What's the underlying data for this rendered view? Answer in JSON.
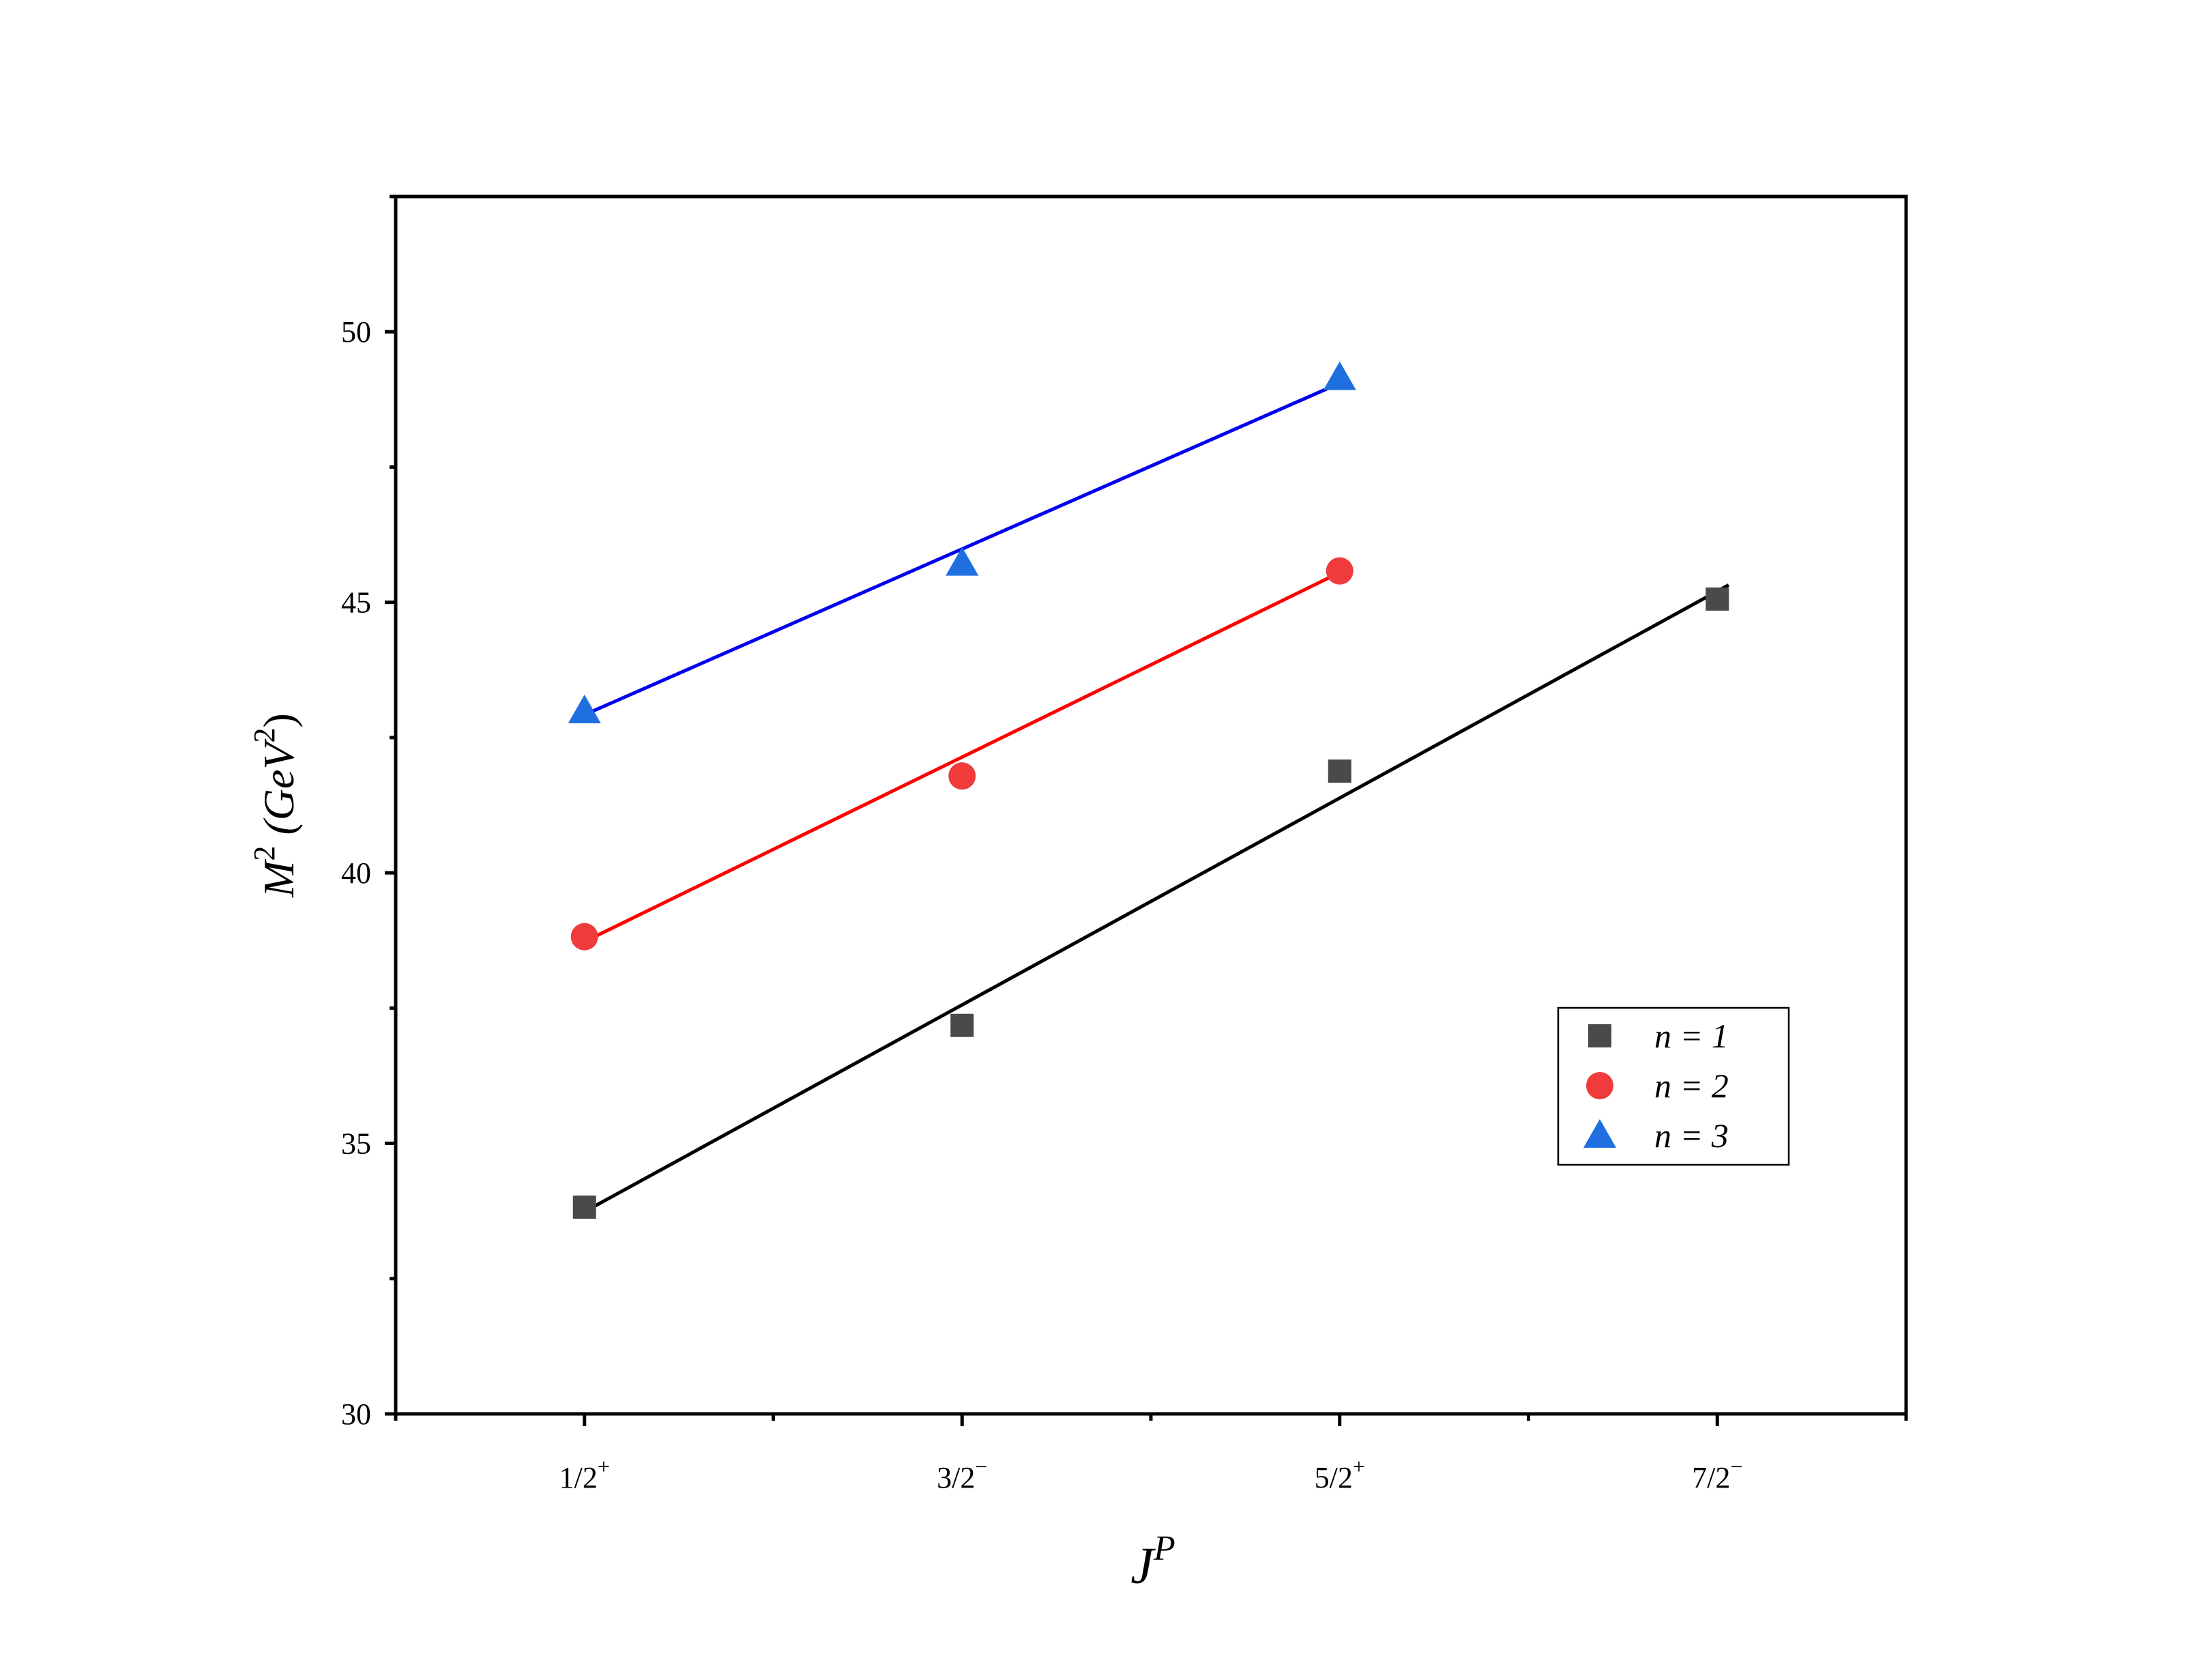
{
  "chart_data": {
    "type": "scatter",
    "title": "",
    "xlabel": "J",
    "xlabel_sup": "P",
    "ylabel": "M",
    "ylabel_sup": "2",
    "ylabel_unit": " (GeV",
    "ylabel_unit_sup": "2",
    "ylabel_close": ")",
    "categories": [
      {
        "num": "1/2",
        "sup": "+"
      },
      {
        "num": "3/2",
        "sup": "−"
      },
      {
        "num": "5/2",
        "sup": "+"
      },
      {
        "num": "7/2",
        "sup": "−"
      }
    ],
    "x": [
      1,
      2,
      3,
      4
    ],
    "xlim": [
      0.5,
      4.5
    ],
    "ylim": [
      30,
      52.5
    ],
    "yticks": [
      30,
      35,
      40,
      45,
      50
    ],
    "yticks_minor": [
      32.5,
      37.5,
      42.5,
      47.5,
      52.5
    ],
    "grid": false,
    "legend_position": "lower-right",
    "series": [
      {
        "name": "n = 1",
        "marker": "square",
        "color": "#4a4a4a",
        "line_color": "#000000",
        "x": [
          1,
          2,
          3,
          4
        ],
        "y": [
          33.82,
          37.18,
          41.88,
          45.06
        ],
        "fit_x": [
          0.98,
          4.03
        ],
        "fit_y": [
          33.66,
          45.32
        ]
      },
      {
        "name": "n = 2",
        "marker": "circle",
        "color": "#ef3b3b",
        "line_color": "#ff0000",
        "x": [
          1,
          2,
          3
        ],
        "y": [
          38.82,
          41.79,
          45.58
        ],
        "fit_x": [
          0.98,
          3.0
        ],
        "fit_y": [
          38.66,
          45.55
        ]
      },
      {
        "name": "n = 3",
        "marker": "triangle",
        "color": "#1f6fe0",
        "line_color": "#0000ee",
        "x": [
          1,
          2,
          3
        ],
        "y": [
          42.99,
          45.72,
          49.15
        ],
        "fit_x": [
          0.98,
          3.0
        ],
        "fit_y": [
          42.86,
          49.05
        ]
      }
    ]
  }
}
